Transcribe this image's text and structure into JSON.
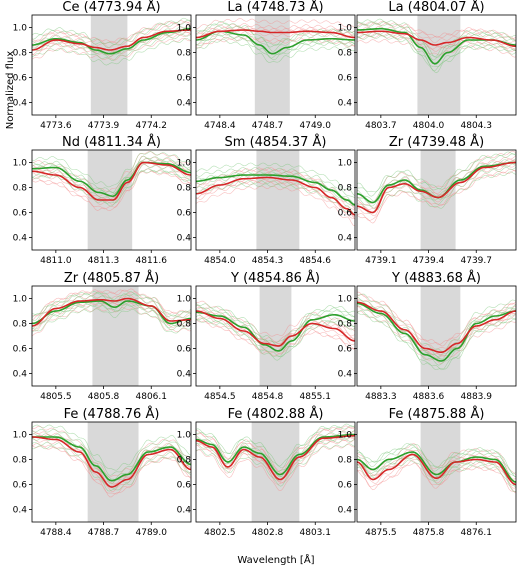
{
  "figure": {
    "xlabel": "Wavelength [Å]",
    "ylabel": "Normalized flux"
  },
  "colors": {
    "green_mean": "#2ca02c",
    "red_mean": "#d62728",
    "green_spectra": "#7ac77a",
    "red_spectra": "#f28b8b",
    "band": "#d9d9d9"
  },
  "chart_data": [
    {
      "type": "line",
      "element": "Ce",
      "line_label": "(4773.94 Å)",
      "xlim": [
        4773.45,
        4774.45
      ],
      "ylim": [
        0.3,
        1.1
      ],
      "xticks": [
        4773.6,
        4773.9,
        4774.2
      ],
      "yticks": [
        0.4,
        0.6,
        0.8,
        1.0
      ],
      "band": [
        4773.82,
        4774.05
      ],
      "line_center": 4773.94,
      "green_mean": {
        "x": [
          4773.45,
          4773.6,
          4773.75,
          4773.85,
          4773.94,
          4774.05,
          4774.15,
          4774.3,
          4774.45
        ],
        "y": [
          0.86,
          0.91,
          0.88,
          0.82,
          0.79,
          0.83,
          0.9,
          0.96,
          0.99
        ]
      },
      "red_mean": {
        "x": [
          4773.45,
          4773.6,
          4773.75,
          4773.85,
          4773.94,
          4774.05,
          4774.15,
          4774.3,
          4774.45
        ],
        "y": [
          0.82,
          0.9,
          0.87,
          0.84,
          0.82,
          0.85,
          0.92,
          0.97,
          0.98
        ]
      }
    },
    {
      "type": "line",
      "element": "La",
      "line_label": "(4748.73 Å)",
      "xlim": [
        4748.25,
        4749.25
      ],
      "ylim": [
        0.3,
        1.1
      ],
      "xticks": [
        4748.4,
        4748.7,
        4749.0
      ],
      "yticks": [
        0.4,
        0.6,
        0.8,
        1.0
      ],
      "band": [
        4748.62,
        4748.84
      ],
      "line_center": 4748.73,
      "green_mean": {
        "x": [
          4748.25,
          4748.4,
          4748.55,
          4748.65,
          4748.73,
          4748.82,
          4748.95,
          4749.1,
          4749.25
        ],
        "y": [
          0.9,
          0.97,
          0.94,
          0.86,
          0.79,
          0.84,
          0.9,
          0.91,
          0.9
        ]
      },
      "red_mean": {
        "x": [
          4748.25,
          4748.4,
          4748.55,
          4748.65,
          4748.73,
          4748.82,
          4748.95,
          4749.1,
          4749.25
        ],
        "y": [
          0.92,
          0.97,
          0.98,
          0.97,
          0.96,
          0.96,
          0.97,
          0.96,
          0.92
        ]
      }
    },
    {
      "type": "line",
      "element": "La",
      "line_label": "(4804.07 Å)",
      "xlim": [
        4803.55,
        4804.55
      ],
      "ylim": [
        0.3,
        1.1
      ],
      "xticks": [
        4803.7,
        4804.0,
        4804.3
      ],
      "yticks": [
        0.4,
        0.6,
        0.8,
        1.0
      ],
      "band": [
        4803.93,
        4804.2
      ],
      "line_center": 4804.07,
      "green_mean": {
        "x": [
          4803.55,
          4803.7,
          4803.85,
          4803.95,
          4804.04,
          4804.12,
          4804.25,
          4804.4,
          4804.55
        ],
        "y": [
          0.98,
          0.99,
          0.96,
          0.84,
          0.71,
          0.8,
          0.9,
          0.9,
          0.86
        ]
      },
      "red_mean": {
        "x": [
          4803.55,
          4803.7,
          4803.85,
          4803.95,
          4804.04,
          4804.12,
          4804.25,
          4804.4,
          4804.55
        ],
        "y": [
          0.96,
          0.97,
          0.95,
          0.9,
          0.86,
          0.88,
          0.92,
          0.9,
          0.85
        ]
      }
    },
    {
      "type": "line",
      "element": "Nd",
      "line_label": "(4811.34 Å)",
      "xlim": [
        4810.85,
        4811.85
      ],
      "ylim": [
        0.3,
        1.1
      ],
      "xticks": [
        4811.0,
        4811.3,
        4811.6
      ],
      "yticks": [
        0.4,
        0.6,
        0.8,
        1.0
      ],
      "band": [
        4811.2,
        4811.48
      ],
      "line_center": 4811.34,
      "green_mean": {
        "x": [
          4810.85,
          4811.0,
          4811.15,
          4811.27,
          4811.36,
          4811.45,
          4811.55,
          4811.7,
          4811.85
        ],
        "y": [
          0.95,
          0.96,
          0.85,
          0.76,
          0.73,
          0.86,
          1.0,
          0.99,
          0.92
        ]
      },
      "red_mean": {
        "x": [
          4810.85,
          4811.0,
          4811.15,
          4811.27,
          4811.36,
          4811.45,
          4811.55,
          4811.7,
          4811.85
        ],
        "y": [
          0.93,
          0.9,
          0.8,
          0.7,
          0.7,
          0.84,
          1.0,
          0.98,
          0.9
        ]
      }
    },
    {
      "type": "line",
      "element": "Sm",
      "line_label": "(4854.37 Å)",
      "xlim": [
        4853.85,
        4854.85
      ],
      "ylim": [
        0.3,
        1.1
      ],
      "xticks": [
        4854.0,
        4854.3,
        4854.6
      ],
      "yticks": [
        0.4,
        0.6,
        0.8,
        1.0
      ],
      "band": [
        4854.23,
        4854.5
      ],
      "line_center": 4854.37,
      "green_mean": {
        "x": [
          4853.85,
          4854.0,
          4854.15,
          4854.3,
          4854.45,
          4854.6,
          4854.7,
          4854.8,
          4854.85
        ],
        "y": [
          0.85,
          0.88,
          0.9,
          0.9,
          0.89,
          0.84,
          0.78,
          0.7,
          0.66
        ]
      },
      "red_mean": {
        "x": [
          4853.85,
          4854.0,
          4854.15,
          4854.3,
          4854.45,
          4854.6,
          4854.7,
          4854.8,
          4854.85
        ],
        "y": [
          0.75,
          0.82,
          0.87,
          0.88,
          0.86,
          0.8,
          0.72,
          0.63,
          0.58
        ]
      }
    },
    {
      "type": "line",
      "element": "Zr",
      "line_label": "(4739.48 Å)",
      "xlim": [
        4738.95,
        4739.95
      ],
      "ylim": [
        0.3,
        1.1
      ],
      "xticks": [
        4739.1,
        4739.4,
        4739.7
      ],
      "yticks": [
        0.4,
        0.6,
        0.8,
        1.0
      ],
      "band": [
        4739.35,
        4739.57
      ],
      "line_center": 4739.48,
      "green_mean": {
        "x": [
          4738.95,
          4739.05,
          4739.15,
          4739.25,
          4739.35,
          4739.46,
          4739.6,
          4739.75,
          4739.95
        ],
        "y": [
          0.75,
          0.68,
          0.82,
          0.86,
          0.78,
          0.72,
          0.86,
          0.97,
          1.0
        ]
      },
      "red_mean": {
        "x": [
          4738.95,
          4739.05,
          4739.15,
          4739.25,
          4739.35,
          4739.46,
          4739.6,
          4739.75,
          4739.95
        ],
        "y": [
          0.65,
          0.6,
          0.8,
          0.83,
          0.77,
          0.72,
          0.84,
          0.96,
          1.0
        ]
      }
    },
    {
      "type": "line",
      "element": "Zr",
      "line_label": "(4805.87 Å)",
      "xlim": [
        4805.35,
        4806.35
      ],
      "ylim": [
        0.3,
        1.1
      ],
      "xticks": [
        4805.5,
        4805.8,
        4806.1
      ],
      "yticks": [
        0.4,
        0.6,
        0.8,
        1.0
      ],
      "band": [
        4805.73,
        4806.02
      ],
      "line_center": 4805.87,
      "green_mean": {
        "x": [
          4805.35,
          4805.5,
          4805.65,
          4805.78,
          4805.87,
          4805.95,
          4806.1,
          4806.22,
          4806.35
        ],
        "y": [
          0.8,
          0.9,
          0.97,
          0.98,
          0.93,
          0.98,
          0.94,
          0.8,
          0.84
        ]
      },
      "red_mean": {
        "x": [
          4805.35,
          4805.5,
          4805.65,
          4805.78,
          4805.87,
          4805.95,
          4806.1,
          4806.22,
          4806.35
        ],
        "y": [
          0.78,
          0.92,
          0.98,
          0.99,
          0.98,
          1.0,
          0.94,
          0.82,
          0.83
        ]
      }
    },
    {
      "type": "line",
      "element": "Y",
      "line_label": "(4854.86 Å)",
      "xlim": [
        4854.35,
        4855.35
      ],
      "ylim": [
        0.3,
        1.1
      ],
      "xticks": [
        4854.5,
        4854.8,
        4855.1
      ],
      "yticks": [
        0.4,
        0.6,
        0.8,
        1.0
      ],
      "band": [
        4854.75,
        4854.95
      ],
      "line_center": 4854.86,
      "green_mean": {
        "x": [
          4854.35,
          4854.5,
          4854.65,
          4854.78,
          4854.87,
          4854.95,
          4855.08,
          4855.22,
          4855.35
        ],
        "y": [
          0.89,
          0.86,
          0.77,
          0.63,
          0.58,
          0.66,
          0.83,
          0.87,
          0.82
        ]
      },
      "red_mean": {
        "x": [
          4854.35,
          4854.5,
          4854.65,
          4854.78,
          4854.87,
          4854.95,
          4855.08,
          4855.22,
          4855.35
        ],
        "y": [
          0.9,
          0.84,
          0.74,
          0.64,
          0.62,
          0.7,
          0.8,
          0.76,
          0.66
        ]
      }
    },
    {
      "type": "line",
      "element": "Y",
      "line_label": "(4883.68 Å)",
      "xlim": [
        4883.15,
        4884.15
      ],
      "ylim": [
        0.3,
        1.1
      ],
      "xticks": [
        4883.3,
        4883.6,
        4883.9
      ],
      "yticks": [
        0.4,
        0.6,
        0.8,
        1.0
      ],
      "band": [
        4883.55,
        4883.8
      ],
      "line_center": 4883.68,
      "green_mean": {
        "x": [
          4883.15,
          4883.3,
          4883.45,
          4883.58,
          4883.68,
          4883.78,
          4883.9,
          4884.02,
          4884.15
        ],
        "y": [
          0.96,
          0.88,
          0.72,
          0.55,
          0.5,
          0.6,
          0.8,
          0.86,
          0.9
        ]
      },
      "red_mean": {
        "x": [
          4883.15,
          4883.3,
          4883.45,
          4883.58,
          4883.68,
          4883.78,
          4883.9,
          4884.02,
          4884.15
        ],
        "y": [
          0.97,
          0.9,
          0.75,
          0.6,
          0.57,
          0.64,
          0.78,
          0.83,
          0.9
        ]
      }
    },
    {
      "type": "line",
      "element": "Fe",
      "line_label": "(4788.76 Å)",
      "xlim": [
        4788.25,
        4789.25
      ],
      "ylim": [
        0.3,
        1.1
      ],
      "xticks": [
        4788.4,
        4788.7,
        4789.0
      ],
      "yticks": [
        0.4,
        0.6,
        0.8,
        1.0
      ],
      "band": [
        4788.6,
        4788.92
      ],
      "line_center": 4788.76,
      "green_mean": {
        "x": [
          4788.25,
          4788.4,
          4788.55,
          4788.65,
          4788.75,
          4788.85,
          4788.98,
          4789.12,
          4789.25
        ],
        "y": [
          0.98,
          0.98,
          0.9,
          0.75,
          0.63,
          0.68,
          0.86,
          0.9,
          0.76
        ]
      },
      "red_mean": {
        "x": [
          4788.25,
          4788.4,
          4788.55,
          4788.65,
          4788.75,
          4788.85,
          4788.98,
          4789.12,
          4789.25
        ],
        "y": [
          0.98,
          0.96,
          0.86,
          0.7,
          0.58,
          0.64,
          0.84,
          0.88,
          0.72
        ]
      }
    },
    {
      "type": "line",
      "element": "Fe",
      "line_label": "(4802.88 Å)",
      "xlim": [
        4802.35,
        4803.35
      ],
      "ylim": [
        0.3,
        1.1
      ],
      "xticks": [
        4802.5,
        4802.8,
        4803.1
      ],
      "yticks": [
        0.4,
        0.6,
        0.8,
        1.0
      ],
      "band": [
        4802.7,
        4803.0
      ],
      "line_center": 4802.88,
      "green_mean": {
        "x": [
          4802.35,
          4802.45,
          4802.55,
          4802.65,
          4802.75,
          4802.88,
          4803.0,
          4803.15,
          4803.35
        ],
        "y": [
          0.96,
          0.92,
          0.78,
          0.9,
          0.85,
          0.68,
          0.84,
          0.98,
          1.0
        ]
      },
      "red_mean": {
        "x": [
          4802.35,
          4802.45,
          4802.55,
          4802.65,
          4802.75,
          4802.88,
          4803.0,
          4803.15,
          4803.35
        ],
        "y": [
          0.95,
          0.9,
          0.74,
          0.88,
          0.82,
          0.64,
          0.82,
          0.97,
          0.99
        ]
      }
    },
    {
      "type": "line",
      "element": "Fe",
      "line_label": "(4875.88 Å)",
      "xlim": [
        4875.35,
        4876.35
      ],
      "ylim": [
        0.3,
        1.1
      ],
      "xticks": [
        4875.5,
        4875.8,
        4876.1
      ],
      "yticks": [
        0.4,
        0.6,
        0.8,
        1.0
      ],
      "band": [
        4875.75,
        4876.0
      ],
      "line_center": 4875.88,
      "green_mean": {
        "x": [
          4875.35,
          4875.45,
          4875.55,
          4875.7,
          4875.85,
          4875.97,
          4876.1,
          4876.22,
          4876.35
        ],
        "y": [
          0.8,
          0.72,
          0.8,
          0.86,
          0.68,
          0.78,
          0.82,
          0.8,
          0.62
        ]
      },
      "red_mean": {
        "x": [
          4875.35,
          4875.45,
          4875.55,
          4875.7,
          4875.85,
          4875.97,
          4876.1,
          4876.22,
          4876.35
        ],
        "y": [
          0.78,
          0.64,
          0.72,
          0.84,
          0.65,
          0.78,
          0.8,
          0.78,
          0.6
        ]
      }
    }
  ]
}
